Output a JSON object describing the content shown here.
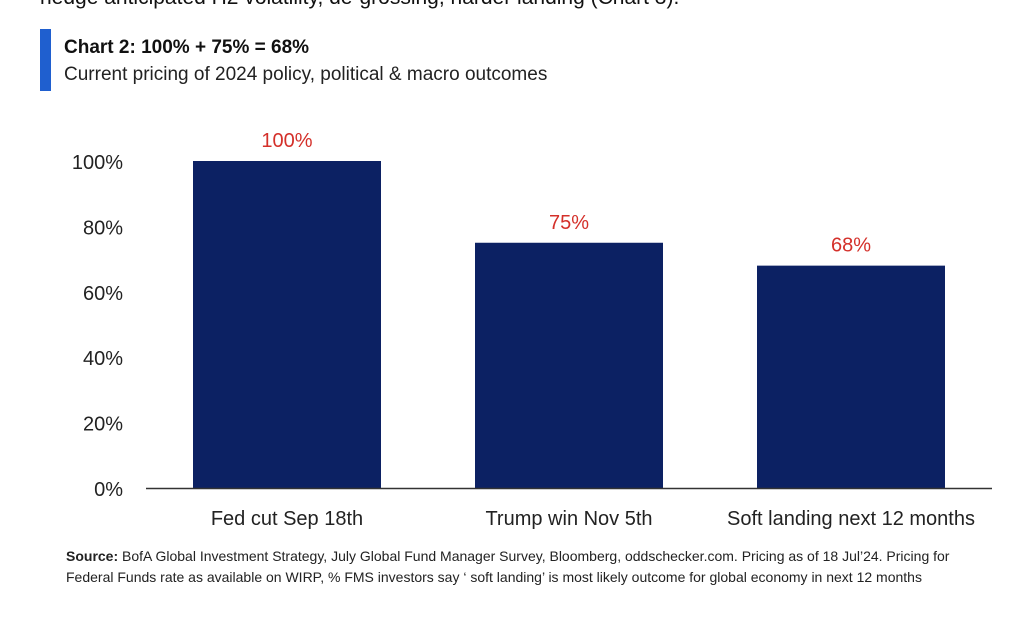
{
  "header": {
    "intro_text": "hedge anticipated H2 volatility, de-grossing, harder landing (Chart 3).",
    "accent_color": "#1f5fcf"
  },
  "chart_data": {
    "type": "bar",
    "title": "Chart 2: 100% + 75% = 68%",
    "subtitle": "Current pricing of 2024 policy, political & macro outcomes",
    "categories": [
      "Fed cut Sep 18th",
      "Trump win Nov 5th",
      "Soft landing next 12 months"
    ],
    "values": [
      100,
      75,
      68
    ],
    "data_labels": [
      "100%",
      "75%",
      "68%"
    ],
    "y_ticks": [
      "0%",
      "20%",
      "40%",
      "60%",
      "80%",
      "100%"
    ],
    "ylim": [
      0,
      100
    ],
    "xlabel": "",
    "ylabel": "",
    "grid": false,
    "bar_color": "#0c2163",
    "label_color": "#d4302a"
  },
  "footer": {
    "source_label": "Source:",
    "source_text": " BofA Global Investment Strategy, July Global Fund Manager Survey, Bloomberg, oddschecker.com. Pricing as of 18 Jul’24. Pricing for Federal Funds rate as available on WIRP, % FMS investors say ‘ soft landing’ is most likely outcome for global economy in next 12 months"
  }
}
